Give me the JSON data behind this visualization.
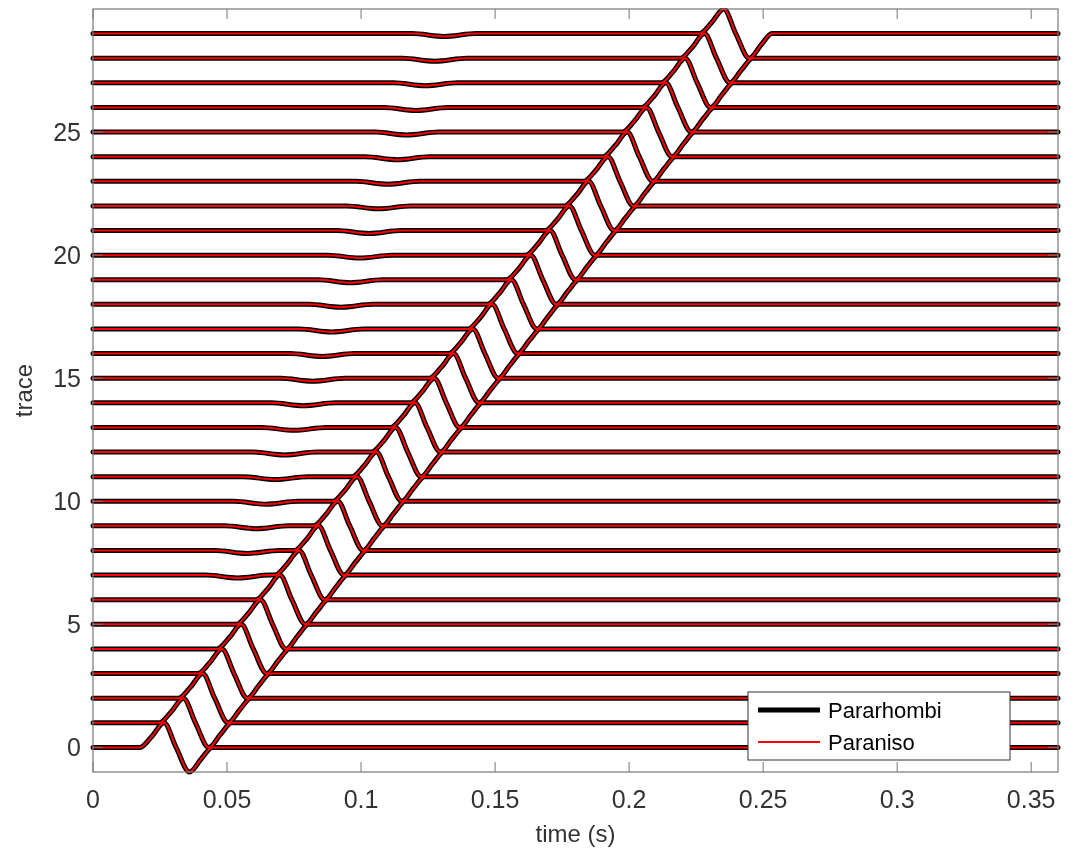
{
  "chart_data": {
    "type": "line",
    "xlabel": "time (s)",
    "ylabel": "trace",
    "xlim": [
      0,
      0.36
    ],
    "xticks": [
      0,
      0.05,
      0.1,
      0.15,
      0.2,
      0.25,
      0.3,
      0.35
    ],
    "ylim": [
      -1,
      30
    ],
    "yticks": [
      0,
      5,
      10,
      15,
      20,
      25
    ],
    "grid": false,
    "legend": "bottom right",
    "line_style": "solid",
    "series": [
      {
        "name": "Pararhombi",
        "color": "#000000",
        "x": [
          0,
          0.0175,
          0.022,
          0.0265,
          0.031,
          0.036,
          0.0405,
          0.0445,
          0.36
        ],
        "values": [
          0,
          0,
          0.45,
          1,
          0,
          -1,
          -0.45,
          0,
          0
        ]
      },
      {
        "color": "#000000",
        "x": [
          0,
          0.0247,
          0.0292,
          0.0337,
          0.0382,
          0.0432,
          0.0477,
          0.0517,
          0.36
        ],
        "values": [
          1,
          1,
          1.45,
          2,
          1,
          0,
          0.55,
          1,
          1
        ]
      },
      {
        "color": "#000000",
        "x": [
          0,
          0.0319,
          0.0364,
          0.0409,
          0.0454,
          0.0504,
          0.0549,
          0.0589,
          0.36
        ],
        "values": [
          2,
          2,
          2.45,
          3,
          2,
          1,
          1.55,
          2,
          2
        ]
      },
      {
        "color": "#000000",
        "x": [
          0,
          0.0391,
          0.0436,
          0.0481,
          0.0526,
          0.0576,
          0.0621,
          0.0661,
          0.36
        ],
        "values": [
          3,
          3,
          3.45,
          4,
          3,
          2,
          2.55,
          3,
          3
        ]
      },
      {
        "color": "#000000",
        "x": [
          0,
          0.0463,
          0.0508,
          0.0553,
          0.0598,
          0.0648,
          0.0693,
          0.0733,
          0.36
        ],
        "values": [
          4,
          4,
          4.45,
          5,
          4,
          3,
          3.55,
          4,
          4
        ]
      },
      {
        "color": "#000000",
        "x": [
          0,
          0.0535,
          0.058,
          0.0625,
          0.067,
          0.072,
          0.0765,
          0.0805,
          0.36
        ],
        "values": [
          5,
          5,
          5.45,
          6,
          5,
          4,
          4.55,
          5,
          5
        ]
      },
      {
        "color": "#000000",
        "x": [
          0,
          0.0607,
          0.0652,
          0.0697,
          0.0742,
          0.0792,
          0.0837,
          0.0877,
          0.36
        ],
        "values": [
          6,
          6,
          6.45,
          7,
          6,
          5,
          5.55,
          6,
          6
        ]
      },
      {
        "color": "#000000",
        "x": [
          0,
          0.042,
          0.054,
          0.066,
          0.0679,
          0.0724,
          0.0769,
          0.0814,
          0.0864,
          0.0909,
          0.0949,
          0.36
        ],
        "values": [
          7,
          7,
          6.88,
          7,
          7,
          7.45,
          8,
          7,
          6,
          6.55,
          7,
          7
        ]
      },
      {
        "color": "#000000",
        "x": [
          0,
          0.0455,
          0.0575,
          0.0695,
          0.0751,
          0.0796,
          0.0841,
          0.0886,
          0.0936,
          0.0981,
          0.1021,
          0.36
        ],
        "values": [
          8,
          8,
          7.88,
          8,
          8,
          8.45,
          9,
          8,
          7,
          7.55,
          8,
          8
        ]
      },
      {
        "color": "#000000",
        "x": [
          0,
          0.049,
          0.061,
          0.073,
          0.0823,
          0.0868,
          0.0913,
          0.0958,
          0.1008,
          0.1053,
          0.1093,
          0.36
        ],
        "values": [
          9,
          9,
          8.88,
          9,
          9,
          9.45,
          10,
          9,
          8,
          8.55,
          9,
          9
        ]
      },
      {
        "color": "#000000",
        "x": [
          0,
          0.0525,
          0.0645,
          0.0765,
          0.0895,
          0.094,
          0.0985,
          0.103,
          0.108,
          0.1125,
          0.1165,
          0.36
        ],
        "values": [
          10,
          10,
          9.88,
          10,
          10,
          10.45,
          11,
          10,
          9,
          9.55,
          10,
          10
        ]
      },
      {
        "color": "#000000",
        "x": [
          0,
          0.056,
          0.068,
          0.08,
          0.0967,
          0.1012,
          0.1057,
          0.1102,
          0.1152,
          0.1197,
          0.1237,
          0.36
        ],
        "values": [
          11,
          11,
          10.88,
          11,
          11,
          11.45,
          12,
          11,
          10,
          10.55,
          11,
          11
        ]
      },
      {
        "color": "#000000",
        "x": [
          0,
          0.0595,
          0.0715,
          0.0835,
          0.1039,
          0.1084,
          0.1129,
          0.1174,
          0.1224,
          0.1269,
          0.1309,
          0.36
        ],
        "values": [
          12,
          12,
          11.88,
          12,
          12,
          12.45,
          13,
          12,
          11,
          11.55,
          12,
          12
        ]
      },
      {
        "color": "#000000",
        "x": [
          0,
          0.063,
          0.075,
          0.087,
          0.1111,
          0.1156,
          0.1201,
          0.1246,
          0.1296,
          0.1341,
          0.1381,
          0.36
        ],
        "values": [
          13,
          13,
          12.88,
          13,
          13,
          13.45,
          14,
          13,
          12,
          12.55,
          13,
          13
        ]
      },
      {
        "color": "#000000",
        "x": [
          0,
          0.0665,
          0.0785,
          0.0905,
          0.1183,
          0.1228,
          0.1273,
          0.1318,
          0.1368,
          0.1413,
          0.1453,
          0.36
        ],
        "values": [
          14,
          14,
          13.88,
          14,
          14,
          14.45,
          15,
          14,
          13,
          13.55,
          14,
          14
        ]
      },
      {
        "color": "#000000",
        "x": [
          0,
          0.07,
          0.082,
          0.094,
          0.1255,
          0.13,
          0.1345,
          0.139,
          0.144,
          0.1485,
          0.1525,
          0.36
        ],
        "values": [
          15,
          15,
          14.88,
          15,
          15,
          15.45,
          16,
          15,
          14,
          14.55,
          15,
          15
        ]
      },
      {
        "color": "#000000",
        "x": [
          0,
          0.0735,
          0.0855,
          0.0975,
          0.1327,
          0.1372,
          0.1417,
          0.1462,
          0.1512,
          0.1557,
          0.1597,
          0.36
        ],
        "values": [
          16,
          16,
          15.88,
          16,
          16,
          16.45,
          17,
          16,
          15,
          15.55,
          16,
          16
        ]
      },
      {
        "color": "#000000",
        "x": [
          0,
          0.077,
          0.089,
          0.101,
          0.1399,
          0.1444,
          0.1489,
          0.1534,
          0.1584,
          0.1629,
          0.1669,
          0.36
        ],
        "values": [
          17,
          17,
          16.88,
          17,
          17,
          17.45,
          18,
          17,
          16,
          16.55,
          17,
          17
        ]
      },
      {
        "color": "#000000",
        "x": [
          0,
          0.0805,
          0.0925,
          0.1045,
          0.1471,
          0.1516,
          0.1561,
          0.1606,
          0.1656,
          0.1701,
          0.1741,
          0.36
        ],
        "values": [
          18,
          18,
          17.88,
          18,
          18,
          18.45,
          19,
          18,
          17,
          17.55,
          18,
          18
        ]
      },
      {
        "color": "#000000",
        "x": [
          0,
          0.084,
          0.096,
          0.108,
          0.1543,
          0.1588,
          0.1633,
          0.1678,
          0.1728,
          0.1773,
          0.1813,
          0.36
        ],
        "values": [
          19,
          19,
          18.88,
          19,
          19,
          19.45,
          20,
          19,
          18,
          18.55,
          19,
          19
        ]
      },
      {
        "color": "#000000",
        "x": [
          0,
          0.0875,
          0.0995,
          0.1115,
          0.1615,
          0.166,
          0.1705,
          0.175,
          0.18,
          0.1845,
          0.1885,
          0.36
        ],
        "values": [
          20,
          20,
          19.88,
          20,
          20,
          20.45,
          21,
          20,
          19,
          19.55,
          20,
          20
        ]
      },
      {
        "color": "#000000",
        "x": [
          0,
          0.091,
          0.103,
          0.115,
          0.1687,
          0.1732,
          0.1777,
          0.1822,
          0.1872,
          0.1917,
          0.1957,
          0.36
        ],
        "values": [
          21,
          21,
          20.88,
          21,
          21,
          21.45,
          22,
          21,
          20,
          20.55,
          21,
          21
        ]
      },
      {
        "color": "#000000",
        "x": [
          0,
          0.0945,
          0.1065,
          0.1185,
          0.1759,
          0.1804,
          0.1849,
          0.1894,
          0.1944,
          0.1989,
          0.2029,
          0.36
        ],
        "values": [
          22,
          22,
          21.88,
          22,
          22,
          22.45,
          23,
          22,
          21,
          21.55,
          22,
          22
        ]
      },
      {
        "color": "#000000",
        "x": [
          0,
          0.098,
          0.11,
          0.122,
          0.1831,
          0.1876,
          0.1921,
          0.1966,
          0.2016,
          0.2061,
          0.2101,
          0.36
        ],
        "values": [
          23,
          23,
          22.88,
          23,
          23,
          23.45,
          24,
          23,
          22,
          22.55,
          23,
          23
        ]
      },
      {
        "color": "#000000",
        "x": [
          0,
          0.1015,
          0.1135,
          0.1255,
          0.1903,
          0.1948,
          0.1993,
          0.2038,
          0.2088,
          0.2133,
          0.2173,
          0.36
        ],
        "values": [
          24,
          24,
          23.88,
          24,
          24,
          24.45,
          25,
          24,
          23,
          23.55,
          24,
          24
        ]
      },
      {
        "color": "#000000",
        "x": [
          0,
          0.105,
          0.117,
          0.129,
          0.1975,
          0.202,
          0.2065,
          0.211,
          0.216,
          0.2205,
          0.2245,
          0.36
        ],
        "values": [
          25,
          25,
          24.88,
          25,
          25,
          25.45,
          26,
          25,
          24,
          24.55,
          25,
          25
        ]
      },
      {
        "color": "#000000",
        "x": [
          0,
          0.1085,
          0.1205,
          0.1325,
          0.2047,
          0.2092,
          0.2137,
          0.2182,
          0.2232,
          0.2277,
          0.2317,
          0.36
        ],
        "values": [
          26,
          26,
          25.88,
          26,
          26,
          26.45,
          27,
          26,
          25,
          25.55,
          26,
          26
        ]
      },
      {
        "color": "#000000",
        "x": [
          0,
          0.112,
          0.124,
          0.136,
          0.2119,
          0.2164,
          0.2209,
          0.2254,
          0.2304,
          0.2349,
          0.2389,
          0.36
        ],
        "values": [
          27,
          27,
          26.88,
          27,
          27,
          27.45,
          28,
          27,
          26,
          26.55,
          27,
          27
        ]
      },
      {
        "color": "#000000",
        "x": [
          0,
          0.1155,
          0.1275,
          0.1395,
          0.2191,
          0.2236,
          0.2281,
          0.2326,
          0.2376,
          0.2421,
          0.2461,
          0.36
        ],
        "values": [
          28,
          28,
          27.88,
          28,
          28,
          28.45,
          29,
          28,
          27,
          27.55,
          28,
          28
        ]
      },
      {
        "color": "#000000",
        "x": [
          0,
          0.119,
          0.131,
          0.143,
          0.2263,
          0.2308,
          0.2353,
          0.2398,
          0.2448,
          0.2493,
          0.2533,
          0.36
        ],
        "values": [
          29,
          29,
          28.88,
          29,
          29,
          29.45,
          30,
          29,
          28,
          28.55,
          29,
          29
        ]
      },
      {
        "name": "Paraniso",
        "color": "#ff0000",
        "x": [
          0,
          0.0175,
          0.022,
          0.0265,
          0.031,
          0.036,
          0.0405,
          0.0445,
          0.36
        ],
        "values": [
          0,
          0,
          0.45,
          1,
          0,
          -1,
          -0.45,
          0,
          0
        ]
      },
      {
        "color": "#ff0000",
        "x": [
          0,
          0.0247,
          0.0292,
          0.0337,
          0.0382,
          0.0432,
          0.0477,
          0.0517,
          0.36
        ],
        "values": [
          1,
          1,
          1.45,
          2,
          1,
          0,
          0.55,
          1,
          1
        ]
      },
      {
        "color": "#ff0000",
        "x": [
          0,
          0.0319,
          0.0364,
          0.0409,
          0.0454,
          0.0504,
          0.0549,
          0.0589,
          0.36
        ],
        "values": [
          2,
          2,
          2.45,
          3,
          2,
          1,
          1.55,
          2,
          2
        ]
      },
      {
        "color": "#ff0000",
        "x": [
          0,
          0.0391,
          0.0436,
          0.0481,
          0.0526,
          0.0576,
          0.0621,
          0.0661,
          0.36
        ],
        "values": [
          3,
          3,
          3.45,
          4,
          3,
          2,
          2.55,
          3,
          3
        ]
      },
      {
        "color": "#ff0000",
        "x": [
          0,
          0.0463,
          0.0508,
          0.0553,
          0.0598,
          0.0648,
          0.0693,
          0.0733,
          0.36
        ],
        "values": [
          4,
          4,
          4.45,
          5,
          4,
          3,
          3.55,
          4,
          4
        ]
      },
      {
        "color": "#ff0000",
        "x": [
          0,
          0.0535,
          0.058,
          0.0625,
          0.067,
          0.072,
          0.0765,
          0.0805,
          0.36
        ],
        "values": [
          5,
          5,
          5.45,
          6,
          5,
          4,
          4.55,
          5,
          5
        ]
      },
      {
        "color": "#ff0000",
        "x": [
          0,
          0.0607,
          0.0652,
          0.0697,
          0.0742,
          0.0792,
          0.0837,
          0.0877,
          0.36
        ],
        "values": [
          6,
          6,
          6.45,
          7,
          6,
          5,
          5.55,
          6,
          6
        ]
      },
      {
        "color": "#ff0000",
        "x": [
          0,
          0.042,
          0.054,
          0.066,
          0.0679,
          0.0724,
          0.0769,
          0.0814,
          0.0864,
          0.0909,
          0.0949,
          0.36
        ],
        "values": [
          7,
          7,
          6.88,
          7,
          7,
          7.45,
          8,
          7,
          6,
          6.55,
          7,
          7
        ]
      },
      {
        "color": "#ff0000",
        "x": [
          0,
          0.0455,
          0.0575,
          0.0695,
          0.0751,
          0.0796,
          0.0841,
          0.0886,
          0.0936,
          0.0981,
          0.1021,
          0.36
        ],
        "values": [
          8,
          8,
          7.88,
          8,
          8,
          8.45,
          9,
          8,
          7,
          7.55,
          8,
          8
        ]
      },
      {
        "color": "#ff0000",
        "x": [
          0,
          0.049,
          0.061,
          0.073,
          0.0823,
          0.0868,
          0.0913,
          0.0958,
          0.1008,
          0.1053,
          0.1093,
          0.36
        ],
        "values": [
          9,
          9,
          8.88,
          9,
          9,
          9.45,
          10,
          9,
          8,
          8.55,
          9,
          9
        ]
      },
      {
        "color": "#ff0000",
        "x": [
          0,
          0.0525,
          0.0645,
          0.0765,
          0.0895,
          0.094,
          0.0985,
          0.103,
          0.108,
          0.1125,
          0.1165,
          0.36
        ],
        "values": [
          10,
          10,
          9.88,
          10,
          10,
          10.45,
          11,
          10,
          9,
          9.55,
          10,
          10
        ]
      },
      {
        "color": "#ff0000",
        "x": [
          0,
          0.056,
          0.068,
          0.08,
          0.0967,
          0.1012,
          0.1057,
          0.1102,
          0.1152,
          0.1197,
          0.1237,
          0.36
        ],
        "values": [
          11,
          11,
          10.88,
          11,
          11,
          11.45,
          12,
          11,
          10,
          10.55,
          11,
          11
        ]
      },
      {
        "color": "#ff0000",
        "x": [
          0,
          0.0595,
          0.0715,
          0.0835,
          0.1039,
          0.1084,
          0.1129,
          0.1174,
          0.1224,
          0.1269,
          0.1309,
          0.36
        ],
        "values": [
          12,
          12,
          11.88,
          12,
          12,
          12.45,
          13,
          12,
          11,
          11.55,
          12,
          12
        ]
      },
      {
        "color": "#ff0000",
        "x": [
          0,
          0.063,
          0.075,
          0.087,
          0.1111,
          0.1156,
          0.1201,
          0.1246,
          0.1296,
          0.1341,
          0.1381,
          0.36
        ],
        "values": [
          13,
          13,
          12.88,
          13,
          13,
          13.45,
          14,
          13,
          12,
          12.55,
          13,
          13
        ]
      },
      {
        "color": "#ff0000",
        "x": [
          0,
          0.0665,
          0.0785,
          0.0905,
          0.1183,
          0.1228,
          0.1273,
          0.1318,
          0.1368,
          0.1413,
          0.1453,
          0.36
        ],
        "values": [
          14,
          14,
          13.88,
          14,
          14,
          14.45,
          15,
          14,
          13,
          13.55,
          14,
          14
        ]
      },
      {
        "color": "#ff0000",
        "x": [
          0,
          0.07,
          0.082,
          0.094,
          0.1255,
          0.13,
          0.1345,
          0.139,
          0.144,
          0.1485,
          0.1525,
          0.36
        ],
        "values": [
          15,
          15,
          14.88,
          15,
          15,
          15.45,
          16,
          15,
          14,
          14.55,
          15,
          15
        ]
      },
      {
        "color": "#ff0000",
        "x": [
          0,
          0.0735,
          0.0855,
          0.0975,
          0.1327,
          0.1372,
          0.1417,
          0.1462,
          0.1512,
          0.1557,
          0.1597,
          0.36
        ],
        "values": [
          16,
          16,
          15.88,
          16,
          16,
          16.45,
          17,
          16,
          15,
          15.55,
          16,
          16
        ]
      },
      {
        "color": "#ff0000",
        "x": [
          0,
          0.077,
          0.089,
          0.101,
          0.1399,
          0.1444,
          0.1489,
          0.1534,
          0.1584,
          0.1629,
          0.1669,
          0.36
        ],
        "values": [
          17,
          17,
          16.88,
          17,
          17,
          17.45,
          18,
          17,
          16,
          16.55,
          17,
          17
        ]
      },
      {
        "color": "#ff0000",
        "x": [
          0,
          0.0805,
          0.0925,
          0.1045,
          0.1471,
          0.1516,
          0.1561,
          0.1606,
          0.1656,
          0.1701,
          0.1741,
          0.36
        ],
        "values": [
          18,
          18,
          17.88,
          18,
          18,
          18.45,
          19,
          18,
          17,
          17.55,
          18,
          18
        ]
      },
      {
        "color": "#ff0000",
        "x": [
          0,
          0.084,
          0.096,
          0.108,
          0.1543,
          0.1588,
          0.1633,
          0.1678,
          0.1728,
          0.1773,
          0.1813,
          0.36
        ],
        "values": [
          19,
          19,
          18.88,
          19,
          19,
          19.45,
          20,
          19,
          18,
          18.55,
          19,
          19
        ]
      },
      {
        "color": "#ff0000",
        "x": [
          0,
          0.0875,
          0.0995,
          0.1115,
          0.1615,
          0.166,
          0.1705,
          0.175,
          0.18,
          0.1845,
          0.1885,
          0.36
        ],
        "values": [
          20,
          20,
          19.88,
          20,
          20,
          20.45,
          21,
          20,
          19,
          19.55,
          20,
          20
        ]
      },
      {
        "color": "#ff0000",
        "x": [
          0,
          0.091,
          0.103,
          0.115,
          0.1687,
          0.1732,
          0.1777,
          0.1822,
          0.1872,
          0.1917,
          0.1957,
          0.36
        ],
        "values": [
          21,
          21,
          20.88,
          21,
          21,
          21.45,
          22,
          21,
          20,
          20.55,
          21,
          21
        ]
      },
      {
        "color": "#ff0000",
        "x": [
          0,
          0.0945,
          0.1065,
          0.1185,
          0.1759,
          0.1804,
          0.1849,
          0.1894,
          0.1944,
          0.1989,
          0.2029,
          0.36
        ],
        "values": [
          22,
          22,
          21.88,
          22,
          22,
          22.45,
          23,
          22,
          21,
          21.55,
          22,
          22
        ]
      },
      {
        "color": "#ff0000",
        "x": [
          0,
          0.098,
          0.11,
          0.122,
          0.1831,
          0.1876,
          0.1921,
          0.1966,
          0.2016,
          0.2061,
          0.2101,
          0.36
        ],
        "values": [
          23,
          23,
          22.88,
          23,
          23,
          23.45,
          24,
          23,
          22,
          22.55,
          23,
          23
        ]
      },
      {
        "color": "#ff0000",
        "x": [
          0,
          0.1015,
          0.1135,
          0.1255,
          0.1903,
          0.1948,
          0.1993,
          0.2038,
          0.2088,
          0.2133,
          0.2173,
          0.36
        ],
        "values": [
          24,
          24,
          23.88,
          24,
          24,
          24.45,
          25,
          24,
          23,
          23.55,
          24,
          24
        ]
      },
      {
        "color": "#ff0000",
        "x": [
          0,
          0.105,
          0.117,
          0.129,
          0.1975,
          0.202,
          0.2065,
          0.211,
          0.216,
          0.2205,
          0.2245,
          0.36
        ],
        "values": [
          25,
          25,
          24.88,
          25,
          25,
          25.45,
          26,
          25,
          24,
          24.55,
          25,
          25
        ]
      },
      {
        "color": "#ff0000",
        "x": [
          0,
          0.1085,
          0.1205,
          0.1325,
          0.2047,
          0.2092,
          0.2137,
          0.2182,
          0.2232,
          0.2277,
          0.2317,
          0.36
        ],
        "values": [
          26,
          26,
          25.88,
          26,
          26,
          26.45,
          27,
          26,
          25,
          25.55,
          26,
          26
        ]
      },
      {
        "color": "#ff0000",
        "x": [
          0,
          0.112,
          0.124,
          0.136,
          0.2119,
          0.2164,
          0.2209,
          0.2254,
          0.2304,
          0.2349,
          0.2389,
          0.36
        ],
        "values": [
          27,
          27,
          26.88,
          27,
          27,
          27.45,
          28,
          27,
          26,
          26.55,
          27,
          27
        ]
      },
      {
        "color": "#ff0000",
        "x": [
          0,
          0.1155,
          0.1275,
          0.1395,
          0.2191,
          0.2236,
          0.2281,
          0.2326,
          0.2376,
          0.2421,
          0.2461,
          0.36
        ],
        "values": [
          28,
          28,
          27.88,
          28,
          28,
          28.45,
          29,
          28,
          27,
          27.55,
          28,
          28
        ]
      },
      {
        "color": "#ff0000",
        "x": [
          0,
          0.119,
          0.131,
          0.143,
          0.2263,
          0.2308,
          0.2353,
          0.2398,
          0.2448,
          0.2493,
          0.2533,
          0.36
        ],
        "values": [
          29,
          29,
          28.88,
          29,
          29,
          29.45,
          30,
          29,
          28,
          28.55,
          29,
          29
        ]
      }
    ]
  }
}
